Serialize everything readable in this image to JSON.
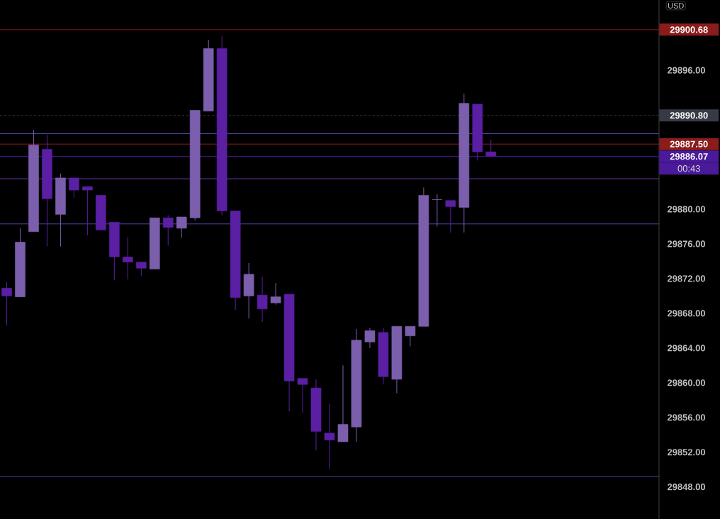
{
  "chart_data": {
    "type": "candlestick",
    "categories": [
      null,
      null,
      null,
      null,
      null,
      null,
      null,
      null,
      null,
      null,
      null,
      null,
      null,
      null,
      null,
      null,
      null,
      null,
      null,
      null,
      null,
      null,
      null,
      null,
      null,
      null,
      null,
      null,
      null,
      null,
      null,
      null,
      null,
      null,
      null,
      null,
      null,
      null,
      null,
      null,
      null,
      null,
      null,
      null,
      null,
      null,
      null,
      null,
      null
    ],
    "ohlc": [
      [
        29870.9,
        29871.6,
        29866.6,
        29870.0
      ],
      [
        29869.9,
        29877.8,
        29869.9,
        29876.2
      ],
      [
        29877.4,
        29889.1,
        29877.4,
        29887.4
      ],
      [
        29886.9,
        29888.6,
        29875.7,
        29881.2
      ],
      [
        29879.4,
        29884.1,
        29875.7,
        29883.6
      ],
      [
        29883.6,
        29883.6,
        29881.3,
        29882.2
      ],
      [
        29882.6,
        29882.6,
        29877.0,
        29882.2
      ],
      [
        29881.6,
        29881.6,
        29877.6,
        29877.6
      ],
      [
        29878.5,
        29878.5,
        29871.8,
        29874.5
      ],
      [
        29874.5,
        29876.8,
        29871.9,
        29873.9
      ],
      [
        29873.9,
        29873.9,
        29872.3,
        29873.2
      ],
      [
        29873.1,
        29879.0,
        29873.1,
        29879.0
      ],
      [
        29879.0,
        29879.3,
        29875.8,
        29877.9
      ],
      [
        29877.8,
        29879.1,
        29876.7,
        29879.1
      ],
      [
        29879.0,
        29891.4,
        29878.7,
        29891.4
      ],
      [
        29891.3,
        29899.5,
        29891.3,
        29898.5
      ],
      [
        29898.5,
        29899.9,
        29879.3,
        29879.8
      ],
      [
        29879.8,
        29879.8,
        29868.4,
        29869.8
      ],
      [
        29870.0,
        29873.8,
        29867.4,
        29872.5
      ],
      [
        29870.1,
        29872.2,
        29867.0,
        29868.5
      ],
      [
        29869.2,
        29871.5,
        29869.0,
        29869.9
      ],
      [
        29870.2,
        29870.2,
        29856.7,
        29860.2
      ],
      [
        29860.5,
        29860.5,
        29856.5,
        29859.8
      ],
      [
        29859.4,
        29860.4,
        29852.2,
        29854.4
      ],
      [
        29854.2,
        29857.6,
        29850.0,
        29853.4
      ],
      [
        29853.2,
        29862.0,
        29853.2,
        29855.2
      ],
      [
        29854.9,
        29866.2,
        29853.2,
        29864.9
      ],
      [
        29864.7,
        29866.3,
        29864.0,
        29866.0
      ],
      [
        29865.8,
        29866.3,
        29859.8,
        29860.7
      ],
      [
        29860.4,
        29866.5,
        29858.8,
        29866.5
      ],
      [
        29865.4,
        29866.5,
        29864.2,
        29866.5
      ],
      [
        29866.5,
        29882.5,
        29866.5,
        29881.6
      ],
      [
        29881.1,
        29881.7,
        29878.0,
        29881.1
      ],
      [
        29881.0,
        29881.0,
        29877.3,
        29880.3
      ],
      [
        29880.2,
        29893.3,
        29877.3,
        29892.2
      ],
      [
        29892.1,
        29892.1,
        29885.6,
        29886.6
      ],
      [
        29886.6,
        29888.0,
        29886.1,
        29886.1
      ],
      null,
      null,
      null,
      null,
      null,
      null,
      null,
      null,
      null,
      null,
      null,
      null
    ],
    "colors": [
      "#5a1fa3",
      "#7b5fac",
      "#7b5fac",
      "#5a1fa3",
      "#7b5fac",
      "#5a1fa3",
      "#5a1fa3",
      "#5a1fa3",
      "#5a1fa3",
      "#5a1fa3",
      "#5a1fa3",
      "#7b5fac",
      "#5a1fa3",
      "#7b5fac",
      "#7b5fac",
      "#7b5fac",
      "#5a1fa3",
      "#5a1fa3",
      "#7b5fac",
      "#5a1fa3",
      "#7b5fac",
      "#5a1fa3",
      "#5a1fa3",
      "#5a1fa3",
      "#5a1fa3",
      "#7b5fac",
      "#7b5fac",
      "#7b5fac",
      "#5a1fa3",
      "#7b5fac",
      "#7b5fac",
      "#7b5fac",
      "#7b5fac",
      "#5a1fa3",
      "#7b5fac",
      "#5a1fa3",
      "#5a1fa3",
      null,
      null,
      null,
      null,
      null,
      null,
      null,
      null,
      null,
      null,
      null,
      null
    ],
    "ylim": [
      29844.3,
      29904.1
    ],
    "yticks": [
      {
        "value": 29848,
        "label": "29848.00"
      },
      {
        "value": 29852,
        "label": "29852.00"
      },
      {
        "value": 29856,
        "label": "29856.00"
      },
      {
        "value": 29860,
        "label": "29860.00"
      },
      {
        "value": 29864,
        "label": "29864.00"
      },
      {
        "value": 29868,
        "label": "29868.00"
      },
      {
        "value": 29872,
        "label": "29872.00"
      },
      {
        "value": 29876,
        "label": "29876.00"
      },
      {
        "value": 29880,
        "label": "29880.00"
      },
      {
        "value": 29896,
        "label": "29896.00"
      }
    ],
    "tick_labels": "y",
    "ref_lines": [
      {
        "axis": "y",
        "value": 29900.68,
        "label": "29900.68",
        "color": "#8b1c1c"
      },
      {
        "axis": "y",
        "value": 29890.8,
        "label": "29890.80",
        "color": "#363a45",
        "line_style": "dashed"
      },
      {
        "axis": "y",
        "value": 29887.5,
        "label": "29887.50",
        "color": "#8b1c1c"
      },
      {
        "axis": "y",
        "value": 29886.07,
        "label": "29886.07",
        "color": "#4a1a9a"
      },
      {
        "axis": "y",
        "value": 29888.7,
        "label": null,
        "color": "#4e43a0"
      },
      {
        "axis": "y",
        "value": 29883.5,
        "label": null,
        "color": "#6a3ab8"
      },
      {
        "axis": "y",
        "value": 29878.3,
        "label": null,
        "color": "#4e43a0"
      },
      {
        "axis": "y",
        "value": 29849.2,
        "label": null,
        "color": "#4e43a0"
      }
    ],
    "annotations": [
      "USD",
      "00:43"
    ]
  }
}
